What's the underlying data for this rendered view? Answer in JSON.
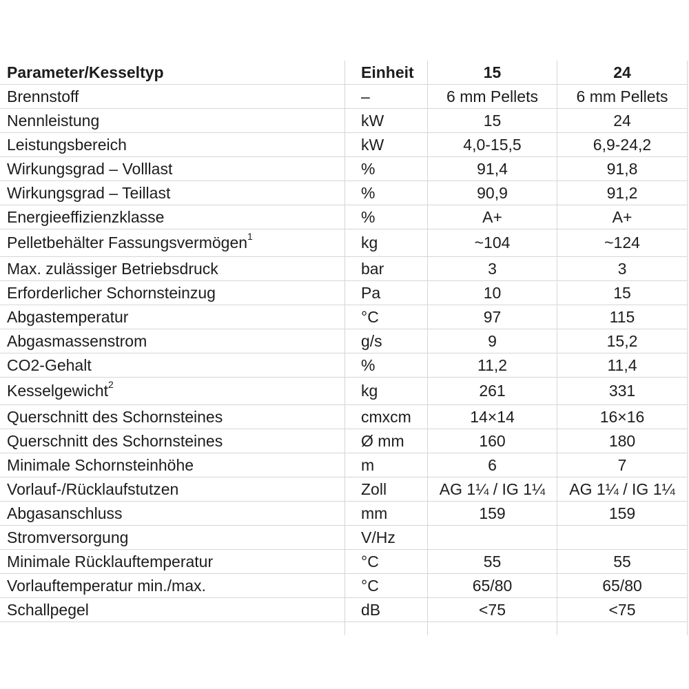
{
  "table": {
    "header": {
      "parameter": "Parameter/Kesseltyp",
      "einheit": "Einheit",
      "model_15": "15",
      "model_24": "24"
    },
    "rows": [
      {
        "parameter": "Brennstoff",
        "sup": "",
        "einheit": "–",
        "v15": "6 mm Pellets",
        "v24": "6 mm Pellets"
      },
      {
        "parameter": "Nennleistung",
        "sup": "",
        "einheit": "kW",
        "v15": "15",
        "v24": "24"
      },
      {
        "parameter": "Leistungsbereich",
        "sup": "",
        "einheit": "kW",
        "v15": "4,0-15,5",
        "v24": "6,9-24,2"
      },
      {
        "parameter": "Wirkungsgrad – Volllast",
        "sup": "",
        "einheit": "%",
        "v15": "91,4",
        "v24": "91,8"
      },
      {
        "parameter": "Wirkungsgrad – Teillast",
        "sup": "",
        "einheit": "%",
        "v15": "90,9",
        "v24": "91,2"
      },
      {
        "parameter": "Energieeffizienzklasse",
        "sup": "",
        "einheit": "%",
        "v15": "A+",
        "v24": "A+"
      },
      {
        "parameter": "Pelletbehälter Fassungsvermögen",
        "sup": "1",
        "einheit": "kg",
        "v15": "~104",
        "v24": "~124"
      },
      {
        "parameter": "Max. zulässiger Betriebsdruck",
        "sup": "",
        "einheit": "bar",
        "v15": "3",
        "v24": "3"
      },
      {
        "parameter": "Erforderlicher Schornsteinzug",
        "sup": "",
        "einheit": "Pa",
        "v15": "10",
        "v24": "15"
      },
      {
        "parameter": "Abgastemperatur",
        "sup": "",
        "einheit": "°C",
        "v15": "97",
        "v24": "115"
      },
      {
        "parameter": "Abgasmassenstrom",
        "sup": "",
        "einheit": "g/s",
        "v15": "9",
        "v24": "15,2"
      },
      {
        "parameter": "CO2-Gehalt",
        "sup": "",
        "einheit": "%",
        "v15": "11,2",
        "v24": "11,4"
      },
      {
        "parameter": "Kesselgewicht",
        "sup": "2",
        "einheit": "kg",
        "v15": "261",
        "v24": "331"
      },
      {
        "parameter": "Querschnitt des Schornsteines",
        "sup": "",
        "einheit": "cmxcm",
        "v15": "14×14",
        "v24": "16×16"
      },
      {
        "parameter": "Querschnitt des Schornsteines",
        "sup": "",
        "einheit": "Ø mm",
        "v15": "160",
        "v24": "180"
      },
      {
        "parameter": "Minimale Schornsteinhöhe",
        "sup": "",
        "einheit": "m",
        "v15": "6",
        "v24": "7"
      },
      {
        "parameter": "Vorlauf-/Rücklaufstutzen",
        "sup": "",
        "einheit": "Zoll",
        "v15": "AG 1¼ / IG 1¼",
        "v24": "AG 1¼ / IG 1¼"
      },
      {
        "parameter": "Abgasanschluss",
        "sup": "",
        "einheit": "mm",
        "v15": "159",
        "v24": "159"
      },
      {
        "parameter": "Stromversorgung",
        "sup": "",
        "einheit": "V/Hz",
        "v15": "",
        "v24": ""
      },
      {
        "parameter": "Minimale Rücklauftemperatur",
        "sup": "",
        "einheit": "°C",
        "v15": "55",
        "v24": "55"
      },
      {
        "parameter": "Vorlauftemperatur min./max.",
        "sup": "",
        "einheit": "°C",
        "v15": "65/80",
        "v24": "65/80"
      },
      {
        "parameter": "Schallpegel",
        "sup": "",
        "einheit": "dB",
        "v15": "<75",
        "v24": "<75"
      }
    ]
  },
  "colors": {
    "border": "#d6d6d6",
    "text": "#1c1c1c",
    "background": "#ffffff"
  }
}
